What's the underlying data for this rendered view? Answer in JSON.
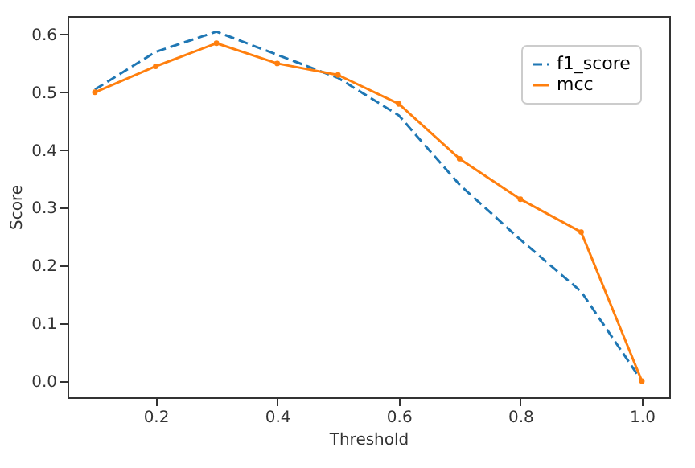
{
  "chart_data": {
    "type": "line",
    "xlabel": "Threshold",
    "ylabel": "Score",
    "x": [
      0.1,
      0.2,
      0.3,
      0.4,
      0.5,
      0.6,
      0.7,
      0.8,
      0.9,
      1.0
    ],
    "series": [
      {
        "name": "f1_score",
        "color": "#1f77b4",
        "line_style": "dashed",
        "marker": "none",
        "values": [
          0.505,
          0.57,
          0.605,
          0.565,
          0.525,
          0.46,
          0.34,
          0.245,
          0.155,
          0.0
        ]
      },
      {
        "name": "mcc",
        "color": "#ff7f0e",
        "line_style": "solid",
        "marker": "circle",
        "values": [
          0.5,
          0.545,
          0.585,
          0.55,
          0.53,
          0.48,
          0.385,
          0.315,
          0.258,
          0.0
        ]
      }
    ],
    "xlim": [
      0.055,
      1.045
    ],
    "ylim": [
      -0.028,
      0.632
    ],
    "xticks": [
      {
        "value": 0.2,
        "label": "0.2"
      },
      {
        "value": 0.4,
        "label": "0.4"
      },
      {
        "value": 0.6,
        "label": "0.6"
      },
      {
        "value": 0.8,
        "label": "0.8"
      },
      {
        "value": 1.0,
        "label": "1.0"
      }
    ],
    "yticks": [
      {
        "value": 0.0,
        "label": "0.0"
      },
      {
        "value": 0.1,
        "label": "0.1"
      },
      {
        "value": 0.2,
        "label": "0.2"
      },
      {
        "value": 0.3,
        "label": "0.3"
      },
      {
        "value": 0.4,
        "label": "0.4"
      },
      {
        "value": 0.5,
        "label": "0.5"
      },
      {
        "value": 0.6,
        "label": "0.6"
      }
    ],
    "grid": false,
    "legend": "top right"
  }
}
